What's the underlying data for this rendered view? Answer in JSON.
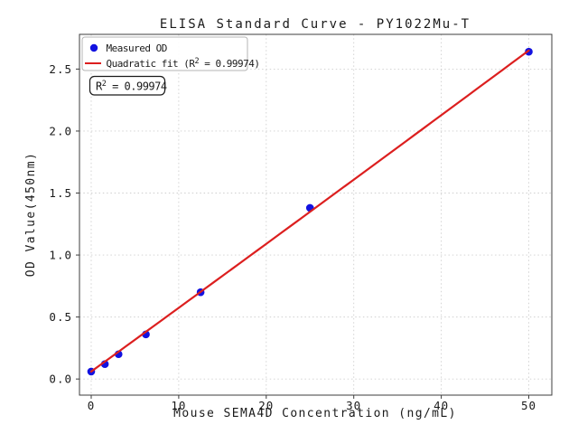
{
  "figure": {
    "background_color": "#ffffff",
    "plot_border_color": "#3c3c3c",
    "grid_color": "#cfcfcf",
    "text_color": "#1a1a1a"
  },
  "chart_data": {
    "type": "scatter",
    "title": "ELISA Standard Curve - PY1022Mu-T",
    "xlabel": "Mouse SEMA4D Concentration (ng/mL)",
    "ylabel": "OD Value(450nm)",
    "xlim": [
      -1.34,
      52.63
    ],
    "ylim": [
      -0.13,
      2.78
    ],
    "x_ticks": [
      0,
      10,
      20,
      30,
      40,
      50
    ],
    "x_tick_labels": [
      "0",
      "10",
      "20",
      "30",
      "40",
      "50"
    ],
    "y_ticks": [
      0,
      0.5,
      1.0,
      1.5,
      2.0,
      2.5
    ],
    "y_tick_labels": [
      "0.0",
      "0.5",
      "1.0",
      "1.5",
      "2.0",
      "2.5"
    ],
    "grid": true,
    "grid_style": "dotted",
    "legend_position": "upper left",
    "series": [
      {
        "name": "Measured OD",
        "type": "scatter",
        "marker": "circle",
        "color": "#1212e0",
        "x": [
          0,
          1.5625,
          3.125,
          6.25,
          12.5,
          25,
          50
        ],
        "y": [
          0.06,
          0.12,
          0.2,
          0.36,
          0.7,
          1.38,
          2.64
        ]
      },
      {
        "name": "Quadratic fit (R² = 0.99974)",
        "type": "line",
        "color": "#dc1f1f",
        "quadratic_coeffs": {
          "a": 1e-05,
          "b": 0.0513,
          "c": 0.06
        },
        "x_range": [
          0,
          50
        ]
      }
    ],
    "annotation": {
      "text": "R² = 0.99974"
    },
    "r_squared": 0.99974
  },
  "legend": {
    "items": [
      {
        "label": "Measured OD",
        "marker_color": "#1212e0"
      },
      {
        "prefix": "Quadratic fit (R",
        "sup": "2",
        "suffix": " = 0.99974)",
        "line_color": "#dc1f1f"
      }
    ]
  },
  "annotation_box": {
    "prefix": "R",
    "sup": "2",
    "suffix": " = 0.99974"
  }
}
